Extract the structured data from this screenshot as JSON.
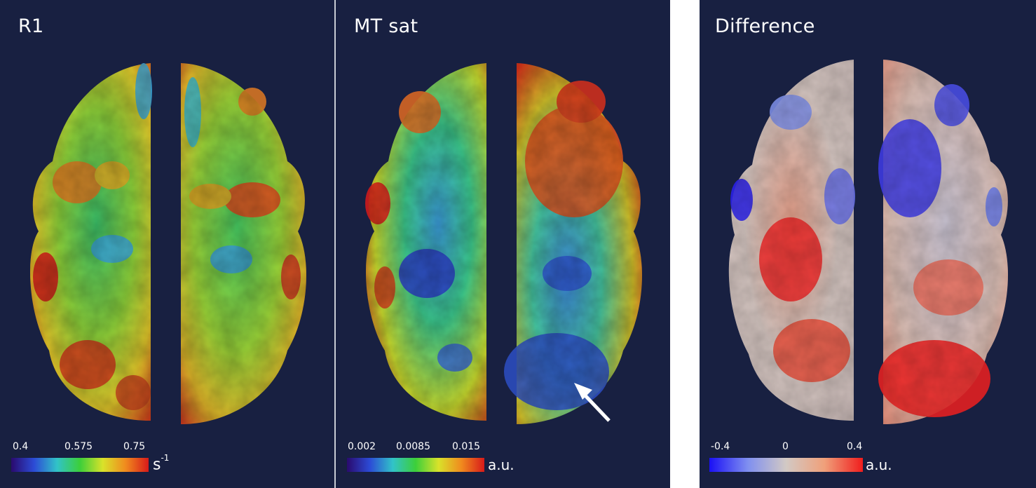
{
  "panels": [
    {
      "title": "R1",
      "colormap": "jet",
      "ticks": [
        "0.4",
        "0.575",
        "0.75"
      ],
      "unit_base": "s",
      "unit_exp": "-1",
      "colors": [
        "#2a0a6e",
        "#2c4bd6",
        "#31c3c8",
        "#3ccf3a",
        "#d9e22a",
        "#f08a1e",
        "#d81a1a"
      ]
    },
    {
      "title": "MT sat",
      "colormap": "jet",
      "ticks": [
        "0.002",
        "0.0085",
        "0.015"
      ],
      "unit": "a.u.",
      "colors": [
        "#2a0a6e",
        "#2c4bd6",
        "#31c3c8",
        "#3ccf3a",
        "#d9e22a",
        "#f08a1e",
        "#d81a1a"
      ]
    },
    {
      "title": "Difference",
      "colormap": "diverging",
      "ticks": [
        "-0.4",
        "0",
        "0.4"
      ],
      "unit": "a.u.",
      "colors": [
        "#1a10f5",
        "#7f8ff0",
        "#d2c9c4",
        "#f0a07a",
        "#f01d1d"
      ]
    }
  ],
  "annotation": "arrow-pointing-to-low-mt-region",
  "background_color": "#182041"
}
